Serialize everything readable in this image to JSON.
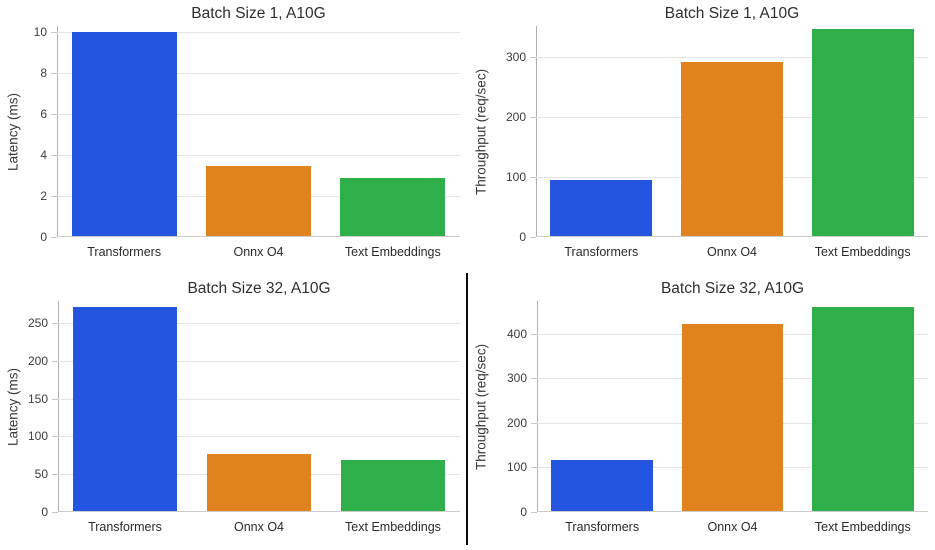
{
  "figure": {
    "background": "#ffffff",
    "divider_note": "vertical black rule between bottom-left and bottom-right charts"
  },
  "palette": {
    "transformers": "#2355E0",
    "onnx_o4": "#E0821D",
    "text_embeddings": "#2EAF4A",
    "gridline": "#e4e4e4",
    "text": "#2f2f2f"
  },
  "chart_data": [
    {
      "type": "bar",
      "title": "Batch Size 1, A10G",
      "ylabel": "Latency (ms)",
      "xlabel": "",
      "categories": [
        "Transformers",
        "Onnx O4",
        "Text Embeddings"
      ],
      "values": [
        9.95,
        3.4,
        2.85
      ],
      "yticks": [
        0,
        2,
        4,
        6,
        8,
        10
      ],
      "ylim": [
        0,
        10.3
      ],
      "grid": true,
      "legend": "none",
      "bar_colors": [
        "#2355E0",
        "#E0821D",
        "#2EAF4A"
      ]
    },
    {
      "type": "bar",
      "title": "Batch Size 1, A10G",
      "ylabel": "Throughput (req/sec)",
      "xlabel": "",
      "categories": [
        "Transformers",
        "Onnx O4",
        "Text Embeddings"
      ],
      "values": [
        93,
        290,
        345
      ],
      "yticks": [
        0,
        100,
        200,
        300
      ],
      "ylim": [
        0,
        352
      ],
      "grid": true,
      "legend": "none",
      "bar_colors": [
        "#2355E0",
        "#E0821D",
        "#2EAF4A"
      ]
    },
    {
      "type": "bar",
      "title": "Batch Size 32, A10G",
      "ylabel": "Latency (ms)",
      "xlabel": "",
      "categories": [
        "Transformers",
        "Onnx O4",
        "Text Embeddings"
      ],
      "values": [
        270,
        75,
        68
      ],
      "yticks": [
        0,
        50,
        100,
        150,
        200,
        250
      ],
      "ylim": [
        0,
        279
      ],
      "grid": true,
      "legend": "none",
      "bar_colors": [
        "#2355E0",
        "#E0821D",
        "#2EAF4A"
      ]
    },
    {
      "type": "bar",
      "title": "Batch Size 32, A10G",
      "ylabel": "Throughput (req/sec)",
      "xlabel": "",
      "categories": [
        "Transformers",
        "Onnx O4",
        "Text Embeddings"
      ],
      "values": [
        115,
        420,
        458
      ],
      "yticks": [
        0,
        100,
        200,
        300,
        400
      ],
      "ylim": [
        0,
        474
      ],
      "grid": true,
      "legend": "none",
      "bar_colors": [
        "#2355E0",
        "#E0821D",
        "#2EAF4A"
      ]
    }
  ]
}
